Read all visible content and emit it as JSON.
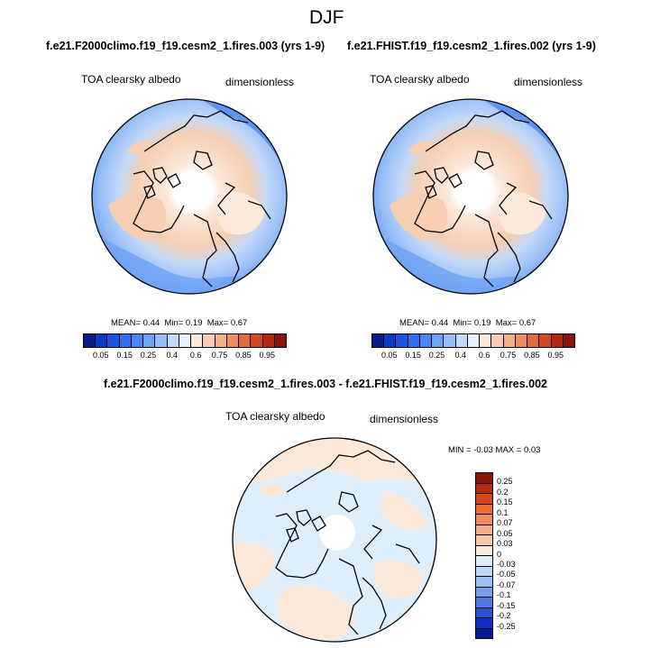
{
  "title": "DJF",
  "panels": [
    {
      "case": "f.e21.F2000climo.f19_f19.cesm2_1.fires.003 (yrs 1-9)",
      "variable": "TOA clearsky albedo",
      "units": "dimensionless",
      "stats": {
        "mean_label": "MEAN=",
        "mean": "0.44",
        "min_label": "Min=",
        "min": "0.19",
        "max_label": "Max=",
        "max": "0.67"
      }
    },
    {
      "case": "f.e21.FHIST.f19_f19.cesm2_1.fires.002 (yrs 1-9)",
      "variable": "TOA clearsky albedo",
      "units": "dimensionless",
      "stats": {
        "mean_label": "MEAN=",
        "mean": "0.44",
        "min_label": "Min=",
        "min": "0.19",
        "max_label": "Max=",
        "max": "0.67"
      }
    }
  ],
  "diff_panel": {
    "case": "f.e21.F2000climo.f19_f19.cesm2_1.fires.003 - f.e21.FHIST.f19_f19.cesm2_1.fires.002",
    "variable": "TOA clearsky albedo",
    "units": "dimensionless",
    "minmax": "MIN = -0.03 MAX =  0.03"
  },
  "colorbar_top": {
    "ticks": [
      "0.05",
      "0.15",
      "0.25",
      "0.4",
      "0.6",
      "0.75",
      "0.85",
      "0.95"
    ],
    "colors": [
      "#081d8c",
      "#0b3ac4",
      "#1a56e0",
      "#2e6ef0",
      "#4a88f2",
      "#6ea3f5",
      "#98bef7",
      "#c2d9f8",
      "#e8f1fb",
      "#fbe9dc",
      "#f6cfb3",
      "#f2b08a",
      "#ec8d62",
      "#e26a3f",
      "#cf4825",
      "#b02b12",
      "#8a1408"
    ]
  },
  "colorbar_diff": {
    "ticks": [
      "0.25",
      "0.2",
      "0.15",
      "0.1",
      "0.07",
      "0.05",
      "0.03",
      "0",
      "-0.03",
      "-0.05",
      "-0.07",
      "-0.1",
      "-0.15",
      "-0.2",
      "-0.25"
    ],
    "colors": [
      "#8a1408",
      "#b52a0e",
      "#d84518",
      "#ef6b33",
      "#f38b5c",
      "#f6ab85",
      "#f8c8aa",
      "#fbe8d8",
      "#dfeefb",
      "#bed7f6",
      "#9dbff2",
      "#779fee",
      "#4e7be6",
      "#2a52d6",
      "#0e2fbf",
      "#071a95"
    ]
  }
}
